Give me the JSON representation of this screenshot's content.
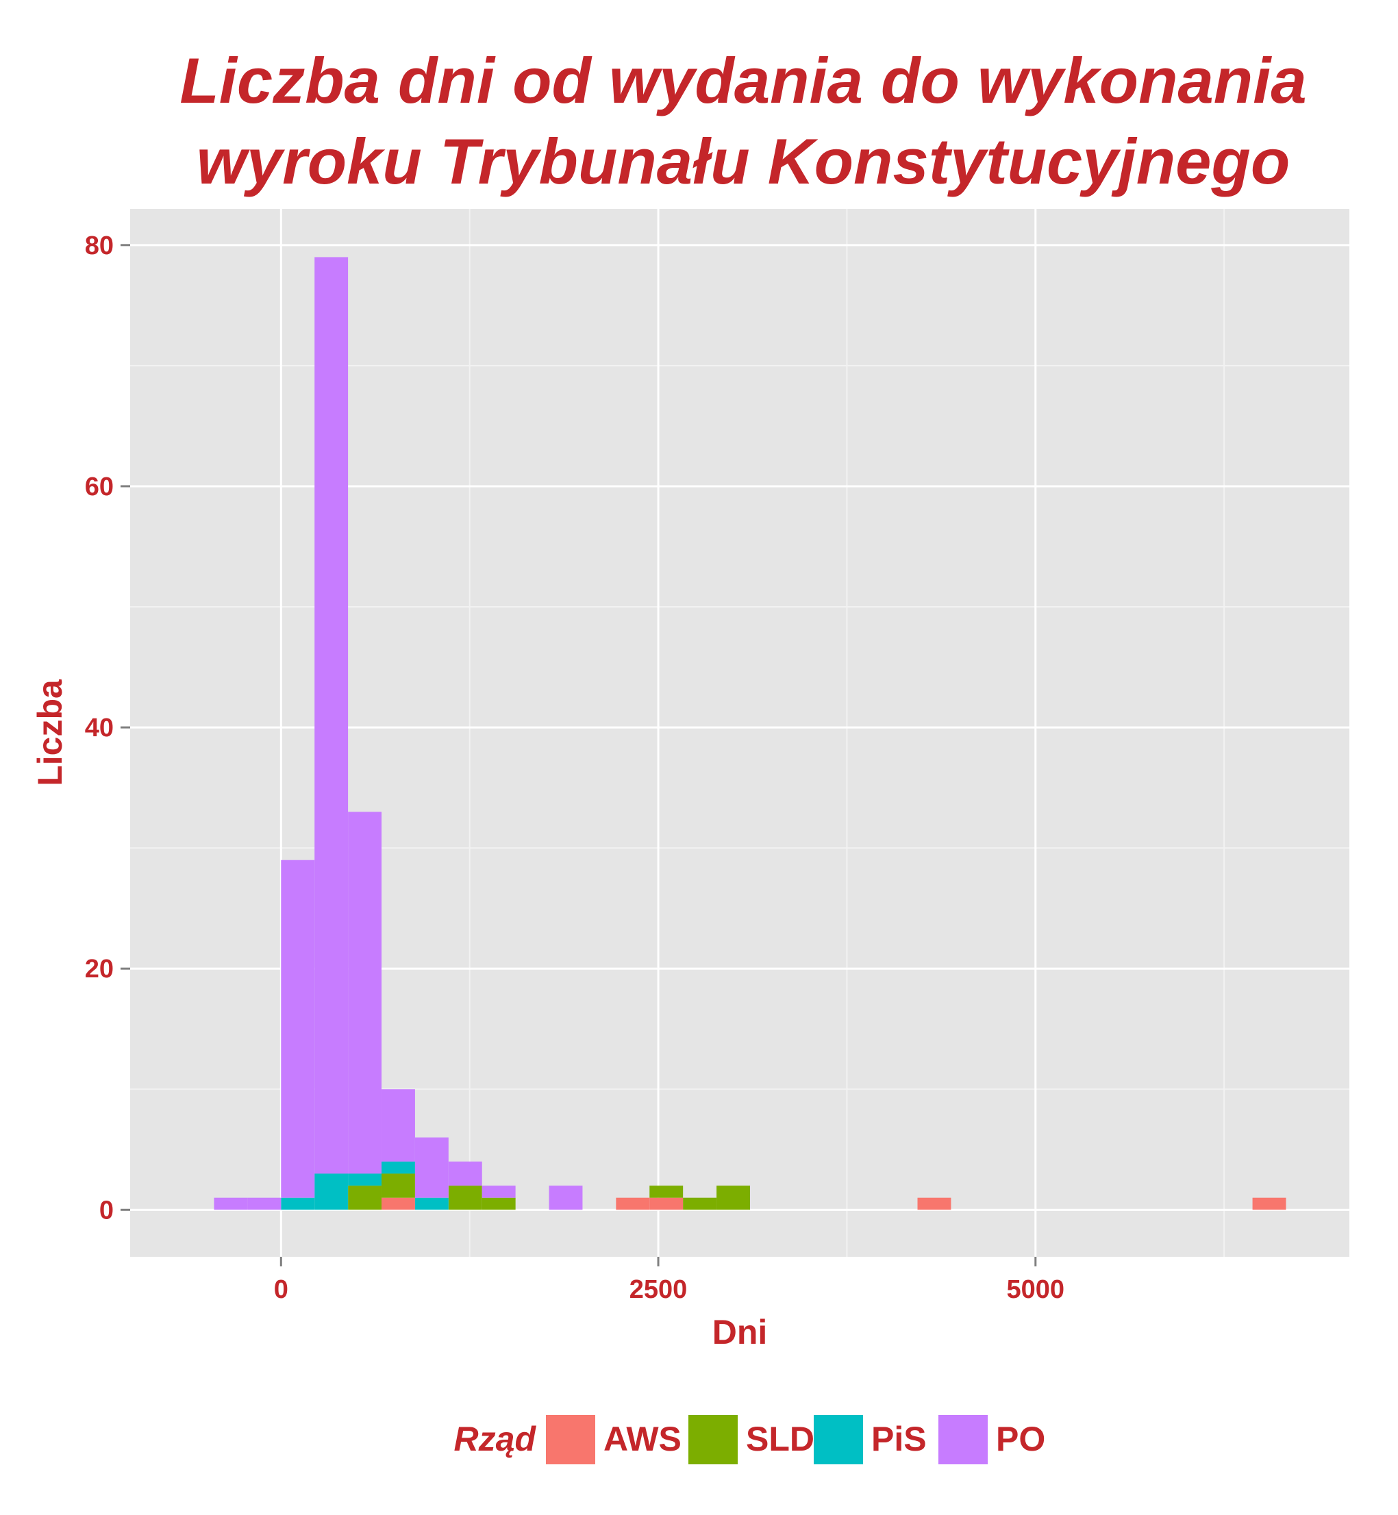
{
  "colors": {
    "text": "#c4262a",
    "panel": "#e5e5e5",
    "grid_major": "#ffffff",
    "grid_minor": "#f2f2f2",
    "tick_mark": "#7f7f7f"
  },
  "chart_data": {
    "type": "bar",
    "subtype": "stacked-histogram",
    "title": [
      "Liczba dni od wydania do wykonania",
      "wyroku Trybunału Konstytucyjnego"
    ],
    "xlabel": "Dni",
    "ylabel": "Liczba",
    "xlim": [
      -1000,
      7080
    ],
    "ylim": [
      -3.9,
      83
    ],
    "xticks": [
      0,
      2500,
      5000
    ],
    "yticks": [
      0,
      20,
      40,
      60,
      80
    ],
    "grid": true,
    "bin_width": 222,
    "legend": {
      "title": "Rząd",
      "position": "bottom",
      "entries": [
        {
          "name": "AWS",
          "color": "#f8766d"
        },
        {
          "name": "SLD",
          "color": "#7cae00"
        },
        {
          "name": "PiS",
          "color": "#00bfc4"
        },
        {
          "name": "PO",
          "color": "#c77cff"
        }
      ]
    },
    "series": [
      {
        "name": "AWS",
        "color": "#f8766d",
        "bins": [
          {
            "x0": 666,
            "count": 1
          },
          {
            "x0": 2220,
            "count": 1
          },
          {
            "x0": 2442,
            "count": 1
          },
          {
            "x0": 4218,
            "count": 1
          },
          {
            "x0": 6438,
            "count": 1
          }
        ]
      },
      {
        "name": "SLD",
        "color": "#7cae00",
        "bins": [
          {
            "x0": 444,
            "count": 2
          },
          {
            "x0": 666,
            "count": 2
          },
          {
            "x0": 1110,
            "count": 2
          },
          {
            "x0": 1332,
            "count": 1
          },
          {
            "x0": 2442,
            "count": 1
          },
          {
            "x0": 2664,
            "count": 1
          },
          {
            "x0": 2886,
            "count": 2
          }
        ]
      },
      {
        "name": "PiS",
        "color": "#00bfc4",
        "bins": [
          {
            "x0": 0,
            "count": 1
          },
          {
            "x0": 222,
            "count": 3
          },
          {
            "x0": 444,
            "count": 1
          },
          {
            "x0": 666,
            "count": 1
          },
          {
            "x0": 888,
            "count": 1
          }
        ]
      },
      {
        "name": "PO",
        "color": "#c77cff",
        "bins": [
          {
            "x0": -444,
            "count": 1
          },
          {
            "x0": -222,
            "count": 1
          },
          {
            "x0": 0,
            "count": 28
          },
          {
            "x0": 222,
            "count": 76
          },
          {
            "x0": 444,
            "count": 30
          },
          {
            "x0": 666,
            "count": 6
          },
          {
            "x0": 888,
            "count": 5
          },
          {
            "x0": 1110,
            "count": 2
          },
          {
            "x0": 1332,
            "count": 1
          },
          {
            "x0": 1776,
            "count": 2
          }
        ]
      }
    ]
  }
}
